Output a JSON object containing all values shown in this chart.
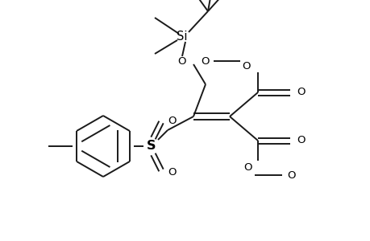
{
  "bg_color": "#ffffff",
  "line_color": "#1a1a1a",
  "line_width": 1.4,
  "font_size": 9.5,
  "fig_width": 4.6,
  "fig_height": 3.0,
  "dpi": 100,
  "xlim": [
    0,
    460
  ],
  "ylim": [
    0,
    300
  ]
}
